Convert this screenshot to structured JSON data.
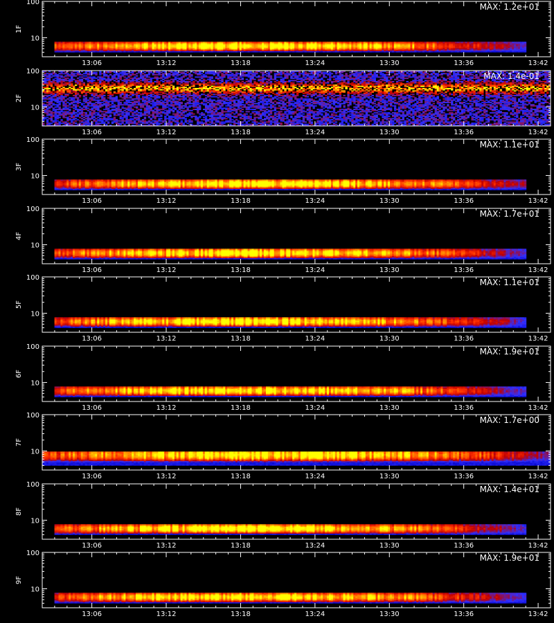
{
  "chart_data": [
    {
      "type": "heatmap",
      "ylabel": "1F",
      "max_label": "MAX: 1.2e+01",
      "max_value": 12,
      "xtick_labels": [
        "13:06",
        "13:12",
        "13:18",
        "13:24",
        "13:30",
        "13:36",
        "13:42"
      ],
      "ytick_labels": [
        "10",
        "100"
      ],
      "xlim": [
        "13:02",
        "13:43"
      ],
      "ylim": [
        3,
        100
      ],
      "yscale": "log",
      "band": {
        "freq_low": 4,
        "freq_high": 8,
        "t_start": "13:03",
        "t_end": "13:41",
        "peak_time": "13:19",
        "peak_freq": 6
      }
    },
    {
      "type": "heatmap",
      "ylabel": "2F",
      "max_label": "MAX: 1.4e-01",
      "max_value": 0.14,
      "xtick_labels": [
        "13:06",
        "13:12",
        "13:18",
        "13:24",
        "13:30",
        "13:36",
        "13:42"
      ],
      "ytick_labels": [
        "10",
        "100"
      ],
      "xlim": [
        "13:02",
        "13:43"
      ],
      "ylim": [
        3,
        100
      ],
      "yscale": "log",
      "band": {
        "freq_low": 3,
        "freq_high": 100,
        "t_start": "13:02",
        "t_end": "13:43",
        "peak_time": "13:22",
        "peak_freq": 33
      }
    },
    {
      "type": "heatmap",
      "ylabel": "3F",
      "max_label": "MAX: 1.1e+01",
      "max_value": 11,
      "xtick_labels": [
        "13:06",
        "13:12",
        "13:18",
        "13:24",
        "13:30",
        "13:36",
        "13:42"
      ],
      "ytick_labels": [
        "10",
        "100"
      ],
      "xlim": [
        "13:02",
        "13:43"
      ],
      "ylim": [
        3,
        100
      ],
      "yscale": "log",
      "band": {
        "freq_low": 4,
        "freq_high": 8,
        "t_start": "13:03",
        "t_end": "13:41",
        "peak_time": "13:20",
        "peak_freq": 6
      }
    },
    {
      "type": "heatmap",
      "ylabel": "4F",
      "max_label": "MAX: 1.7e+01",
      "max_value": 17,
      "xtick_labels": [
        "13:06",
        "13:12",
        "13:18",
        "13:24",
        "13:30",
        "13:36",
        "13:42"
      ],
      "ytick_labels": [
        "10",
        "100"
      ],
      "xlim": [
        "13:02",
        "13:43"
      ],
      "ylim": [
        3,
        100
      ],
      "yscale": "log",
      "band": {
        "freq_low": 4,
        "freq_high": 8,
        "t_start": "13:03",
        "t_end": "13:41",
        "peak_time": "13:19",
        "peak_freq": 6
      }
    },
    {
      "type": "heatmap",
      "ylabel": "5F",
      "max_label": "MAX: 1.1e+01",
      "max_value": 11,
      "xtick_labels": [
        "13:06",
        "13:12",
        "13:18",
        "13:24",
        "13:30",
        "13:36",
        "13:42"
      ],
      "ytick_labels": [
        "10",
        "100"
      ],
      "xlim": [
        "13:02",
        "13:43"
      ],
      "ylim": [
        3,
        100
      ],
      "yscale": "log",
      "band": {
        "freq_low": 4,
        "freq_high": 8,
        "t_start": "13:03",
        "t_end": "13:41",
        "peak_time": "13:19",
        "peak_freq": 6
      }
    },
    {
      "type": "heatmap",
      "ylabel": "6F",
      "max_label": "MAX: 1.9e+01",
      "max_value": 19,
      "xtick_labels": [
        "13:06",
        "13:12",
        "13:18",
        "13:24",
        "13:30",
        "13:36",
        "13:42"
      ],
      "ytick_labels": [
        "10",
        "100"
      ],
      "xlim": [
        "13:02",
        "13:43"
      ],
      "ylim": [
        3,
        100
      ],
      "yscale": "log",
      "band": {
        "freq_low": 4,
        "freq_high": 8,
        "t_start": "13:03",
        "t_end": "13:41",
        "peak_time": "13:19",
        "peak_freq": 6
      }
    },
    {
      "type": "heatmap",
      "ylabel": "7F",
      "max_label": "MAX: 1.7e+00",
      "max_value": 1.7,
      "xtick_labels": [
        "13:06",
        "13:12",
        "13:18",
        "13:24",
        "13:30",
        "13:36",
        "13:42"
      ],
      "ytick_labels": [
        "10",
        "100"
      ],
      "xlim": [
        "13:02",
        "13:43"
      ],
      "ylim": [
        3,
        100
      ],
      "yscale": "log",
      "band": {
        "freq_low": 4,
        "freq_high": 10,
        "t_start": "13:02",
        "t_end": "13:43",
        "peak_time": "13:20",
        "peak_freq": 8
      }
    },
    {
      "type": "heatmap",
      "ylabel": "8F",
      "max_label": "MAX: 1.4e+01",
      "max_value": 14,
      "xtick_labels": [
        "13:06",
        "13:12",
        "13:18",
        "13:24",
        "13:30",
        "13:36",
        "13:42"
      ],
      "ytick_labels": [
        "10",
        "100"
      ],
      "xlim": [
        "13:02",
        "13:43"
      ],
      "ylim": [
        3,
        100
      ],
      "yscale": "log",
      "band": {
        "freq_low": 4,
        "freq_high": 8,
        "t_start": "13:03",
        "t_end": "13:41",
        "peak_time": "13:19",
        "peak_freq": 6
      }
    },
    {
      "type": "heatmap",
      "ylabel": "9F",
      "max_label": "MAX: 1.9e+01",
      "max_value": 19,
      "xtick_labels": [
        "13:06",
        "13:12",
        "13:18",
        "13:24",
        "13:30",
        "13:36",
        "13:42"
      ],
      "ytick_labels": [
        "10",
        "100"
      ],
      "xlim": [
        "13:02",
        "13:43"
      ],
      "ylim": [
        3,
        100
      ],
      "yscale": "log",
      "band": {
        "freq_low": 4,
        "freq_high": 8,
        "t_start": "13:03",
        "t_end": "13:41",
        "peak_time": "13:19",
        "peak_freq": 6
      }
    }
  ],
  "colors": {
    "background": "#000000",
    "axes": "#ffffff",
    "colormap": [
      "#000000",
      "#0000c8",
      "#3030ff",
      "#c00000",
      "#ff3000",
      "#ff9000",
      "#ffff00"
    ]
  }
}
